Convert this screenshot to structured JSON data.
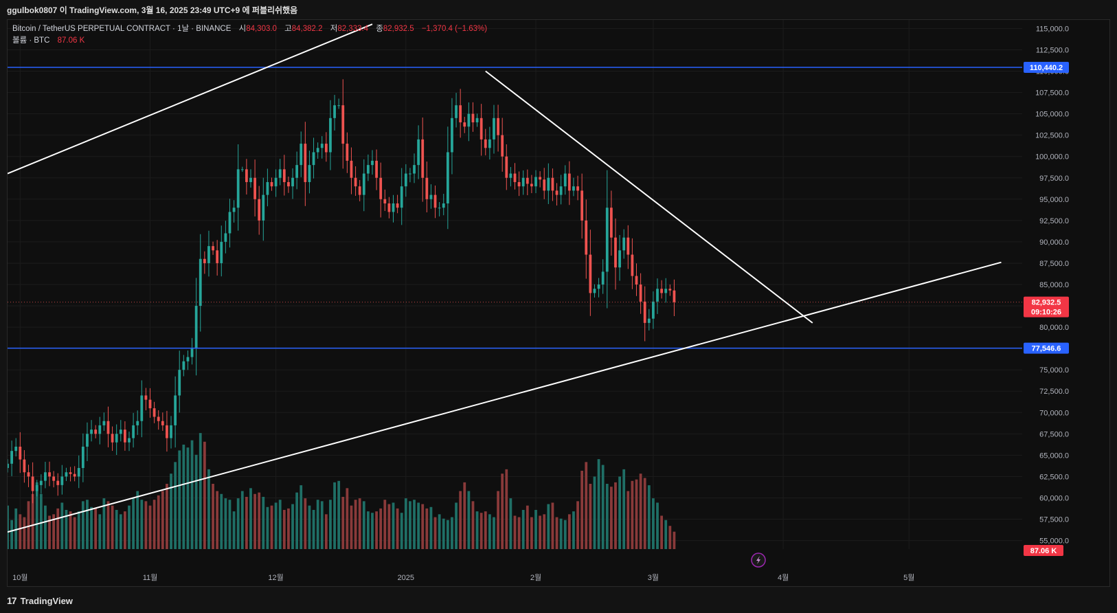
{
  "attribution": "ggulbok0807 이 TradingView.com, 3월 16, 2025 23:49 UTC+9 에 퍼블리쉬했음",
  "legend": {
    "symbol": "Bitcoin / TetherUS PERPETUAL CONTRACT · 1날 · BINANCE",
    "open_label": "시",
    "open": "84,303.0",
    "high_label": "고",
    "high": "84,382.2",
    "low_label": "저",
    "low": "82,333.4",
    "close_label": "종",
    "close": "82,932.5",
    "change": "−1,370.4 (−1.63%)",
    "volume_label": "볼륨 · BTC",
    "volume": "87.06 K"
  },
  "footer": {
    "logo": "17",
    "brand": "TradingView"
  },
  "colors": {
    "up": "#26a69a",
    "down": "#ef5350",
    "vol_up": "#1f6f66",
    "vol_down": "#8a3a3a",
    "level": "#2962ff",
    "trend": "#ffffff",
    "grid": "#1c1c1c"
  },
  "chart_data": {
    "type": "candlestick",
    "y_ticks": [
      "115,000.0",
      "112,500.0",
      "110,000.0",
      "107,500.0",
      "105,000.0",
      "102,500.0",
      "100,000.0",
      "97,500.0",
      "95,000.0",
      "92,500.0",
      "90,000.0",
      "87,500.0",
      "85,000.0",
      "82,500.0",
      "80,000.0",
      "77,500.0",
      "75,000.0",
      "72,500.0",
      "70,000.0",
      "67,500.0",
      "65,000.0",
      "62,500.0",
      "60,000.0",
      "57,500.0",
      "55,000.0"
    ],
    "y_tick_values": [
      115000,
      112500,
      110000,
      107500,
      105000,
      102500,
      100000,
      97500,
      95000,
      92500,
      90000,
      87500,
      85000,
      82500,
      80000,
      77500,
      75000,
      72500,
      70000,
      67500,
      65000,
      62500,
      60000,
      57500,
      55000
    ],
    "ylim": [
      54000,
      116000
    ],
    "x_labels": [
      "10월",
      "11월",
      "12월",
      "2025",
      "2월",
      "3월",
      "4월",
      "5월"
    ],
    "x_label_dates": [
      "2024-10-01",
      "2024-11-01",
      "2024-12-01",
      "2025-01-01",
      "2025-02-01",
      "2025-03-01",
      "2025-04-01",
      "2025-05-01"
    ],
    "xlim": [
      "2024-09-28",
      "2025-05-28"
    ],
    "data_start": "2024-09-28",
    "levels": [
      {
        "price": 110440.2,
        "label": "110,440.2"
      },
      {
        "price": 77546.6,
        "label": "77,546.6"
      }
    ],
    "last_price": {
      "price": 82932.5,
      "label": "82,932.5",
      "countdown": "09:10:26"
    },
    "last_volume_label": "87.06 K",
    "trendlines": [
      {
        "x1": "2024-09-28",
        "y1": 98000,
        "x2": "2024-12-24",
        "y2": 115500
      },
      {
        "x1": "2024-09-28",
        "y1": 56000,
        "x2": "2025-05-23",
        "y2": 87600
      },
      {
        "x1": "2025-01-20",
        "y1": 110000,
        "x2": "2025-04-08",
        "y2": 80500
      }
    ],
    "closes": [
      64000,
      65500,
      66000,
      64500,
      63000,
      62500,
      60800,
      61500,
      62000,
      63000,
      62500,
      62000,
      61500,
      62500,
      63000,
      62800,
      62500,
      63500,
      66000,
      67500,
      68000,
      67500,
      68500,
      69000,
      67500,
      66500,
      67500,
      68000,
      66500,
      67000,
      68500,
      69000,
      72000,
      71500,
      70500,
      69500,
      69000,
      68500,
      67000,
      68500,
      72000,
      75000,
      76000,
      76500,
      77500,
      82500,
      88000,
      87500,
      89500,
      89000,
      87500,
      90000,
      91000,
      93500,
      94000,
      98500,
      98500,
      97000,
      97500,
      95000,
      92500,
      95500,
      97000,
      96500,
      97500,
      98500,
      97000,
      96500,
      97500,
      99000,
      101500,
      97000,
      99000,
      100500,
      101000,
      101500,
      100500,
      104500,
      106000,
      106000,
      101500,
      99500,
      97500,
      96500,
      95500,
      98000,
      99000,
      99500,
      97500,
      95000,
      94500,
      93500,
      94500,
      94000,
      96500,
      98000,
      98000,
      99000,
      102000,
      97500,
      95000,
      95500,
      94000,
      94000,
      94500,
      100500,
      104500,
      106000,
      104000,
      103500,
      105000,
      104000,
      104500,
      102000,
      101000,
      102000,
      104500,
      102500,
      100000,
      97500,
      98000,
      97000,
      96500,
      97500,
      96800,
      96500,
      97600,
      97300,
      96000,
      97500,
      96000,
      95500,
      96500,
      98000,
      96000,
      96500,
      96000,
      92500,
      88500,
      84000,
      84500,
      85000,
      86500,
      94000,
      90500,
      87000,
      89000,
      90500,
      88500,
      86000,
      85000,
      83000,
      80500,
      81000,
      83000,
      84500,
      84000,
      84500,
      84303,
      82932
    ],
    "volumes": [
      30,
      20,
      28,
      24,
      22,
      33,
      38,
      46,
      38,
      30,
      23,
      24,
      28,
      32,
      27,
      26,
      22,
      26,
      33,
      34,
      29,
      28,
      24,
      35,
      33,
      30,
      27,
      24,
      26,
      30,
      35,
      40,
      34,
      33,
      30,
      34,
      37,
      40,
      45,
      52,
      60,
      68,
      72,
      70,
      75,
      65,
      80,
      74,
      55,
      45,
      40,
      38,
      35,
      34,
      26,
      35,
      40,
      36,
      42,
      38,
      39,
      36,
      29,
      30,
      32,
      34,
      27,
      28,
      31,
      39,
      44,
      35,
      30,
      27,
      34,
      33,
      24,
      34,
      46,
      47,
      36,
      42,
      30,
      34,
      35,
      33,
      26,
      25,
      26,
      28,
      34,
      31,
      32,
      28,
      25,
      35,
      33,
      34,
      32,
      31,
      28,
      29,
      22,
      24,
      21,
      20,
      22,
      32,
      40,
      46,
      40,
      33,
      26,
      25,
      26,
      24,
      22,
      40,
      52,
      55,
      35,
      23,
      22,
      27,
      30,
      22,
      27,
      23,
      24,
      31,
      32,
      22,
      21,
      20,
      24,
      26,
      33,
      54,
      60,
      45,
      50,
      62,
      58,
      45,
      43,
      46,
      50,
      55,
      40,
      47,
      48,
      52,
      49,
      44,
      35,
      32,
      23,
      20,
      16,
      12
    ]
  }
}
